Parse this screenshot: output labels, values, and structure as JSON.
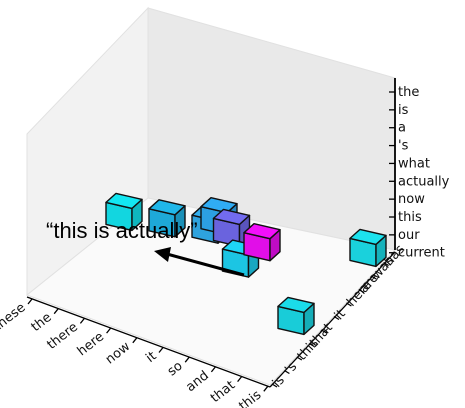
{
  "chart_data": {
    "type": "3d-bar",
    "x_axis": {
      "tick_labels": [
        "these",
        "the",
        "there",
        "here",
        "now",
        "it",
        "so",
        "and",
        "that",
        "this"
      ]
    },
    "y_axis": {
      "tick_labels": [
        "is",
        "'s",
        "this",
        "that",
        "-",
        "it",
        "here",
        "are",
        "was",
        "has"
      ]
    },
    "z_axis": {
      "tick_labels": [
        "the",
        "is",
        "a",
        "'s",
        "what",
        "actually",
        "now",
        "this",
        "our",
        "current"
      ]
    },
    "cubes": [
      {
        "x": "these",
        "y": "is",
        "z": "what",
        "color": "#12d6e0"
      },
      {
        "x": "there",
        "y": "is",
        "z": "what",
        "color": "#1ea9d8"
      },
      {
        "x": "now",
        "y": "is",
        "z": "what",
        "color": "#2ea2dd"
      },
      {
        "x": "it",
        "y": "is",
        "z": "what",
        "color": "#6a63de"
      },
      {
        "x": "now",
        "y": "'s",
        "z": "what",
        "color": "#2c9fe2"
      },
      {
        "x": "it",
        "y": "'s",
        "z": "now",
        "color": "#1cc5e3"
      },
      {
        "x": "so",
        "y": "'s",
        "z": "actually",
        "color": "#e10ee8"
      },
      {
        "x": "that",
        "y": "is",
        "z": "our",
        "color": "#19ccd8"
      },
      {
        "x": "that",
        "y": "was",
        "z": "our",
        "color": "#1ad1dc"
      }
    ],
    "annotations": [
      {
        "text": "“this is actually”",
        "arrow": true
      }
    ]
  }
}
